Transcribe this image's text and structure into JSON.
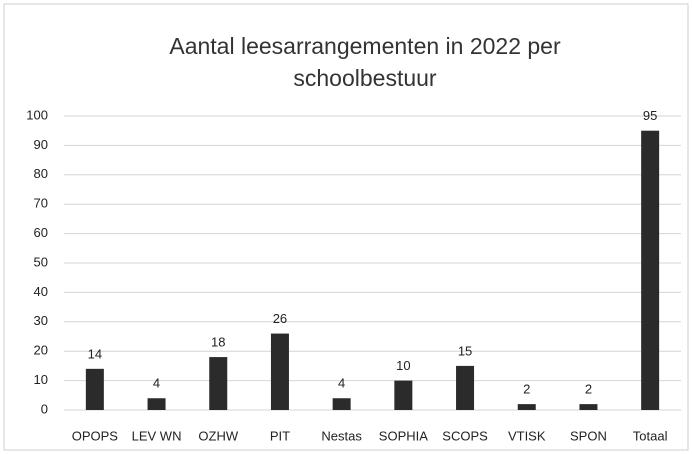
{
  "chart_data": {
    "type": "bar",
    "title": "Aantal leesarrangementen in 2022 per schoolbestuur",
    "categories": [
      "OPOPS",
      "LEV WN",
      "OZHW",
      "PIT",
      "Nestas",
      "SOPHIA",
      "SCOPS",
      "VTISK",
      "SPON",
      "Totaal"
    ],
    "values": [
      14,
      4,
      18,
      26,
      4,
      10,
      15,
      2,
      2,
      95
    ],
    "color": "#2b2b2b",
    "ylim": [
      0,
      100
    ],
    "yticks": [
      0,
      10,
      20,
      30,
      40,
      50,
      60,
      70,
      80,
      90,
      100
    ],
    "grid": true
  }
}
